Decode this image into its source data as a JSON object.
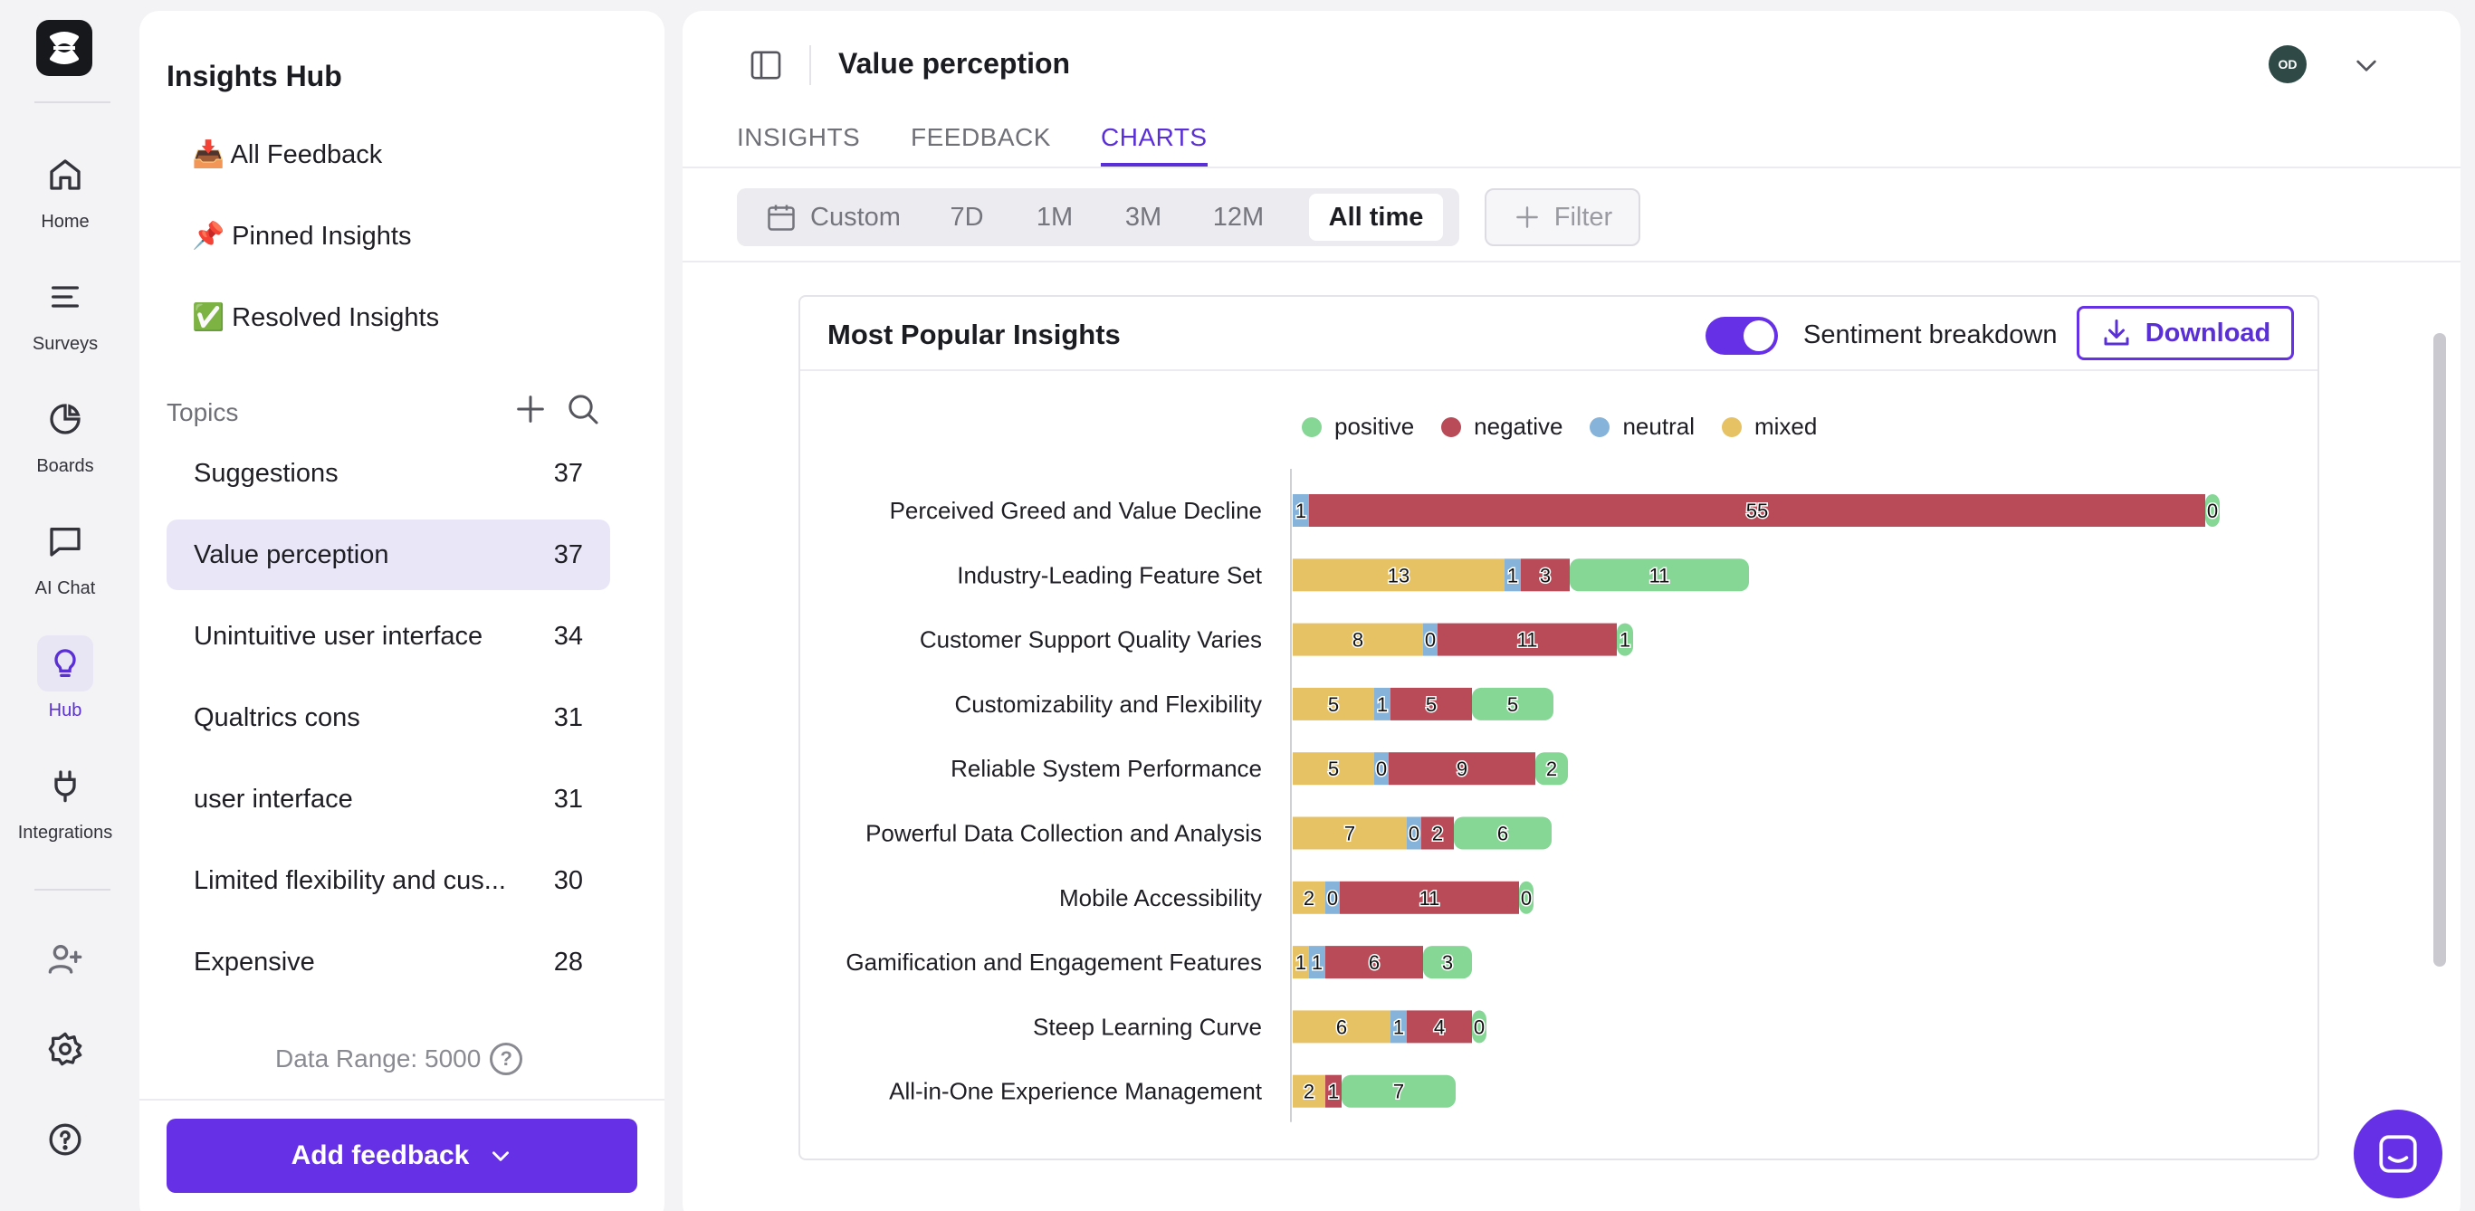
{
  "rail": {
    "items": [
      {
        "label": "Home",
        "icon": "home-icon"
      },
      {
        "label": "Surveys",
        "icon": "list-icon"
      },
      {
        "label": "Boards",
        "icon": "pie-chart-icon"
      },
      {
        "label": "AI Chat",
        "icon": "chat-icon"
      },
      {
        "label": "Hub",
        "icon": "lightbulb-icon",
        "active": true
      },
      {
        "label": "Integrations",
        "icon": "plug-icon"
      }
    ],
    "accent": "#5a2fd6"
  },
  "hub": {
    "title": "Insights Hub",
    "nav": [
      {
        "label": "📥 All Feedback"
      },
      {
        "label": "📌 Pinned Insights"
      },
      {
        "label": "✅ Resolved Insights"
      }
    ],
    "topics_label": "Topics",
    "topics": [
      {
        "name": "Suggestions",
        "count": "37"
      },
      {
        "name": "Value perception",
        "count": "37",
        "selected": true
      },
      {
        "name": "Unintuitive user interface",
        "count": "34"
      },
      {
        "name": "Qualtrics cons",
        "count": "31"
      },
      {
        "name": "user interface",
        "count": "31"
      },
      {
        "name": "Limited flexibility and cus...",
        "count": "30"
      },
      {
        "name": "Expensive",
        "count": "28"
      }
    ],
    "data_range": "Data Range: 5000",
    "help_glyph": "?",
    "add_feedback": "Add feedback"
  },
  "main": {
    "title": "Value perception",
    "avatar_initials": "OD",
    "tabs": [
      {
        "label": "INSIGHTS"
      },
      {
        "label": "FEEDBACK"
      },
      {
        "label": "CHARTS",
        "active": true
      }
    ],
    "ranges": [
      "Custom",
      "7D",
      "1M",
      "3M",
      "12M",
      "All time"
    ],
    "active_range": "All time",
    "filter_label": "Filter"
  },
  "card": {
    "title": "Most Popular Insights",
    "toggle_label": "Sentiment breakdown",
    "toggle_on": true,
    "download_label": "Download"
  },
  "chart_data": {
    "type": "bar",
    "orientation": "horizontal",
    "stacked": true,
    "title": "Most Popular Insights",
    "legend_placement": "top-center",
    "legend": [
      {
        "name": "positive",
        "color": "#86d796"
      },
      {
        "name": "negative",
        "color": "#b94a57"
      },
      {
        "name": "neutral",
        "color": "#86b3d9"
      },
      {
        "name": "mixed",
        "color": "#e7c265"
      }
    ],
    "categories": [
      "Perceived Greed and Value Decline",
      "Industry-Leading Feature Set",
      "Customer Support Quality Varies",
      "Customizability and Flexibility",
      "Reliable System Performance",
      "Powerful Data Collection and Analysis",
      "Mobile Accessibility",
      "Gamification and Engagement Features",
      "Steep Learning Curve",
      "All-in-One Experience Management"
    ],
    "segment_order": [
      "mixed",
      "neutral",
      "negative",
      "positive"
    ],
    "rows": [
      {
        "mixed": null,
        "neutral": 1,
        "negative": 55,
        "positive": 0
      },
      {
        "mixed": 13,
        "neutral": 1,
        "negative": 3,
        "positive": 11
      },
      {
        "mixed": 8,
        "neutral": 0,
        "negative": 11,
        "positive": 1
      },
      {
        "mixed": 5,
        "neutral": 1,
        "negative": 5,
        "positive": 5
      },
      {
        "mixed": 5,
        "neutral": 0,
        "negative": 9,
        "positive": 2
      },
      {
        "mixed": 7,
        "neutral": 0,
        "negative": 2,
        "positive": 6
      },
      {
        "mixed": 2,
        "neutral": 0,
        "negative": 11,
        "positive": 0
      },
      {
        "mixed": 1,
        "neutral": 1,
        "negative": 6,
        "positive": 3
      },
      {
        "mixed": 6,
        "neutral": 1,
        "negative": 4,
        "positive": 0
      },
      {
        "mixed": 2,
        "neutral": null,
        "negative": 1,
        "positive": 7
      }
    ]
  }
}
